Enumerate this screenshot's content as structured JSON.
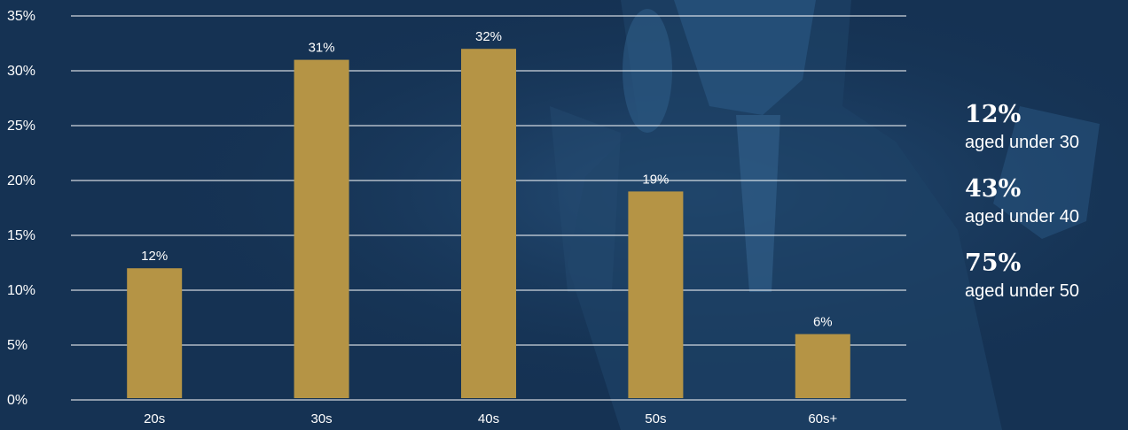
{
  "colors": {
    "background": "#153253",
    "bar": "#b59445",
    "grid": "#ffffff",
    "text": "#ffffff"
  },
  "chart_data": {
    "type": "bar",
    "categories": [
      "20s",
      "30s",
      "40s",
      "50s",
      "60s+"
    ],
    "values": [
      12,
      31,
      32,
      19,
      6
    ],
    "data_labels": [
      "12%",
      "31%",
      "32%",
      "19%",
      "6%"
    ],
    "ylim": [
      0,
      35
    ],
    "yticks": [
      0,
      5,
      10,
      15,
      20,
      25,
      30,
      35
    ],
    "ytick_labels": [
      "0%",
      "5%",
      "10%",
      "15%",
      "20%",
      "25%",
      "30%",
      "35%"
    ],
    "grid": true,
    "title": "",
    "xlabel": "",
    "ylabel": ""
  },
  "stats": [
    {
      "value": "12%",
      "caption": "aged under 30"
    },
    {
      "value": "43%",
      "caption": "aged under 40"
    },
    {
      "value": "75%",
      "caption": "aged under 50"
    }
  ]
}
